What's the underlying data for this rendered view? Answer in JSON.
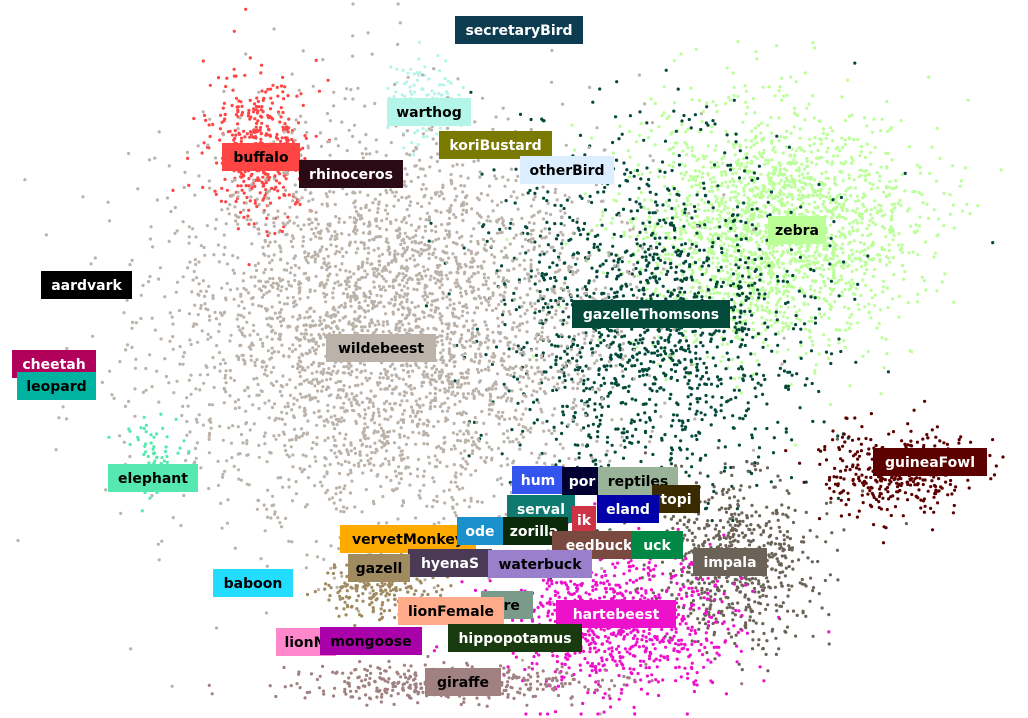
{
  "chart_data": {
    "type": "scatter",
    "title": "",
    "xlabel": "",
    "ylabel": "",
    "axes_visible": false,
    "grid": false,
    "legend": "none",
    "clusters": [
      {
        "name": "secretaryBird",
        "color": "#0d3b4f",
        "text_color": "#ffffff",
        "points": 0,
        "spread": [
          0,
          0
        ]
      },
      {
        "name": "warthog",
        "color": "#b3f5e8",
        "text_color": "#000000",
        "points": 120,
        "spread": [
          18,
          22
        ]
      },
      {
        "name": "buffalo",
        "color": "#ff4444",
        "text_color": "#000000",
        "points": 420,
        "spread": [
          25,
          35
        ]
      },
      {
        "name": "koriBustard",
        "color": "#7a7a00",
        "text_color": "#ffffff",
        "points": 0,
        "spread": [
          0,
          0
        ]
      },
      {
        "name": "rhinoceros",
        "color": "#2a0a14",
        "text_color": "#ffffff",
        "points": 0,
        "spread": [
          0,
          0
        ]
      },
      {
        "name": "otherBird",
        "color": "#dbeeff",
        "text_color": "#000000",
        "points": 0,
        "spread": [
          0,
          0
        ]
      },
      {
        "name": "zebra",
        "color": "#bbff99",
        "text_color": "#000000",
        "points": 2200,
        "spread": [
          70,
          60
        ]
      },
      {
        "name": "aardvark",
        "color": "#000000",
        "text_color": "#ffffff",
        "points": 0,
        "spread": [
          0,
          0
        ]
      },
      {
        "name": "gazelleThomsons",
        "color": "#034a3a",
        "text_color": "#ffffff",
        "points": 1500,
        "spread": [
          80,
          85
        ]
      },
      {
        "name": "wildebeest",
        "color": "#bbb3aa",
        "text_color": "#000000",
        "points": 3600,
        "spread": [
          110,
          100
        ]
      },
      {
        "name": "cheetah",
        "color": "#b0005a",
        "text_color": "#ffffff",
        "points": 0,
        "spread": [
          0,
          0
        ]
      },
      {
        "name": "leopard",
        "color": "#00b3a0",
        "text_color": "#000000",
        "points": 0,
        "spread": [
          0,
          0
        ]
      },
      {
        "name": "guineaFowl",
        "color": "#5c0000",
        "text_color": "#ffffff",
        "points": 380,
        "spread": [
          40,
          22
        ]
      },
      {
        "name": "elephant",
        "color": "#55e8b0",
        "text_color": "#000000",
        "points": 60,
        "spread": [
          15,
          20
        ]
      },
      {
        "name": "human",
        "color": "#3355ee",
        "text_color": "#ffffff",
        "points": 0,
        "spread": [
          0,
          0
        ]
      },
      {
        "name": "porcupine",
        "color": "#000033",
        "text_color": "#ffffff",
        "points": 0,
        "spread": [
          0,
          0
        ]
      },
      {
        "name": "reptiles",
        "color": "#99b399",
        "text_color": "#000000",
        "points": 0,
        "spread": [
          0,
          0
        ]
      },
      {
        "name": "topi",
        "color": "#3a2a00",
        "text_color": "#ffffff",
        "points": 0,
        "spread": [
          0,
          0
        ]
      },
      {
        "name": "serval",
        "color": "#0f7a70",
        "text_color": "#ffffff",
        "points": 0,
        "spread": [
          0,
          0
        ]
      },
      {
        "name": "dikdik",
        "color": "#cc3344",
        "text_color": "#ffffff",
        "points": 0,
        "spread": [
          0,
          0
        ]
      },
      {
        "name": "eland",
        "color": "#0000aa",
        "text_color": "#ffffff",
        "points": 0,
        "spread": [
          0,
          0
        ]
      },
      {
        "name": "zorilla",
        "color": "#0a2a0a",
        "text_color": "#ffffff",
        "points": 0,
        "spread": [
          0,
          0
        ]
      },
      {
        "name": "reedbuck",
        "color": "#7a4a40",
        "text_color": "#ffffff",
        "points": 0,
        "spread": [
          0,
          0
        ]
      },
      {
        "name": "bushbuck",
        "color": "#008844",
        "text_color": "#ffffff",
        "points": 0,
        "spread": [
          0,
          0
        ]
      },
      {
        "name": "vervetMonkey",
        "color": "#ffaa00",
        "text_color": "#000000",
        "points": 0,
        "spread": [
          0,
          0
        ]
      },
      {
        "name": "hyenaSpotted",
        "color": "#4a3a55",
        "text_color": "#ffffff",
        "points": 0,
        "spread": [
          0,
          0
        ]
      },
      {
        "name": "waterbuck",
        "color": "#9a80cc",
        "text_color": "#000000",
        "points": 0,
        "spread": [
          0,
          0
        ]
      },
      {
        "name": "impala",
        "color": "#6b6358",
        "text_color": "#ffffff",
        "points": 700,
        "spread": [
          40,
          40
        ]
      },
      {
        "name": "baboon",
        "color": "#22ddff",
        "text_color": "#000000",
        "points": 0,
        "spread": [
          0,
          0
        ]
      },
      {
        "name": "gazelleGrants",
        "color": "#a08a60",
        "text_color": "#000000",
        "points": 200,
        "spread": [
          30,
          15
        ]
      },
      {
        "name": "hare",
        "color": "#7a9a8a",
        "text_color": "#000000",
        "points": 0,
        "spread": [
          0,
          0
        ]
      },
      {
        "name": "hartebeest",
        "color": "#ee11cc",
        "text_color": "#ffffff",
        "points": 900,
        "spread": [
          60,
          35
        ]
      },
      {
        "name": "lionFemale",
        "color": "#ffaa88",
        "text_color": "#000000",
        "points": 0,
        "spread": [
          0,
          0
        ]
      },
      {
        "name": "lionMale",
        "color": "#ff88cc",
        "text_color": "#000000",
        "points": 0,
        "spread": [
          0,
          0
        ]
      },
      {
        "name": "mongoose",
        "color": "#aa00aa",
        "text_color": "#000000",
        "points": 0,
        "spread": [
          0,
          0
        ]
      },
      {
        "name": "hippopotamus",
        "color": "#1a3a10",
        "text_color": "#ffffff",
        "points": 0,
        "spread": [
          0,
          0
        ]
      },
      {
        "name": "giraffe",
        "color": "#a08080",
        "text_color": "#000000",
        "points": 400,
        "spread": [
          80,
          9
        ]
      }
    ],
    "label_texts": {
      "secretaryBird": "secretaryBird",
      "warthog": "warthog",
      "buffalo": "buffalo",
      "koriBustard": "koriBustard",
      "rhinoceros": "rhinoceros",
      "otherBird": "otherBird",
      "zebra": "zebra",
      "aardvark": "aardvark",
      "gazelleThomsons": "gazelleThomsons",
      "wildebeest": "wildebeest",
      "cheetah": "cheetah",
      "leopard": "leopard",
      "guineaFowl": "guineaFowl",
      "elephant": "elephant",
      "human": "hum",
      "porcupine": "por",
      "reptiles": "reptiles",
      "topi": "topi",
      "serval": "serval",
      "dikdik": "ik",
      "eland": "eland",
      "zorilla": "zorilla",
      "reedbuck": "eedbuck",
      "bushbuck": "uck",
      "vervetMonkey": "vervetMonkey",
      "hyenaSpotted": "hyenaS",
      "waterbuck": "waterbuck",
      "impala": "impala",
      "baboon": "baboon",
      "gazelleGrants": "gazell",
      "hare": "are",
      "hartebeest": "hartebeest",
      "lionFemale": "lionFemale",
      "lionMale": "lionM",
      "mongoose": "mongoose",
      "hippopotamus": "hippopotamus",
      "giraffe": "giraffe",
      "extra": "ode"
    }
  }
}
